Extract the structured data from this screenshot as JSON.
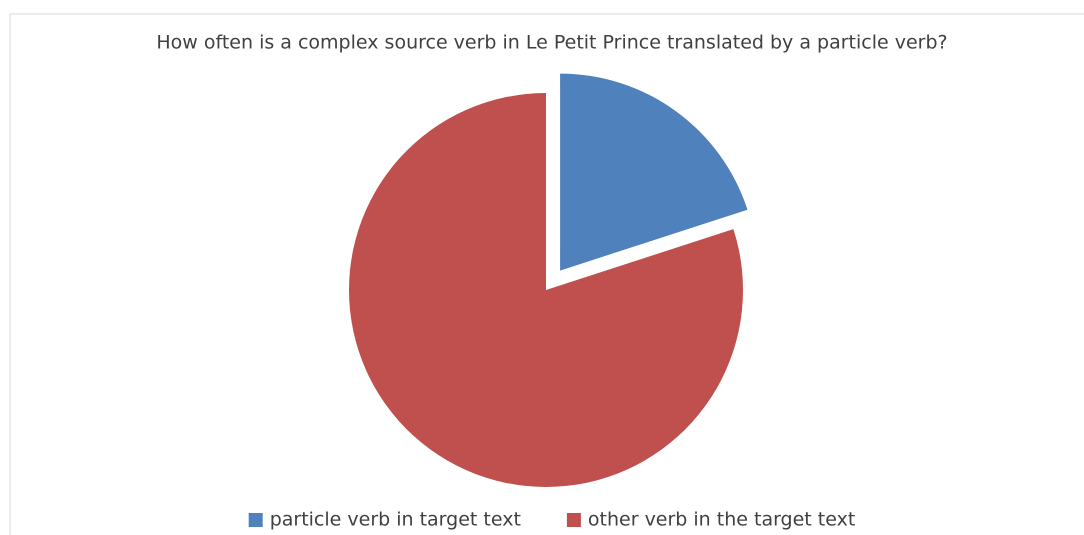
{
  "chart_data": {
    "type": "pie",
    "title": "How often is a complex source verb in Le Petit Prince translated by a particle verb?",
    "categories": [
      "particle verb in target text",
      "other verb in the target text"
    ],
    "values": [
      20,
      80
    ],
    "colors": [
      "#4f81bd",
      "#c0504d"
    ],
    "exploded": [
      true,
      false
    ],
    "legend": "bottom"
  }
}
